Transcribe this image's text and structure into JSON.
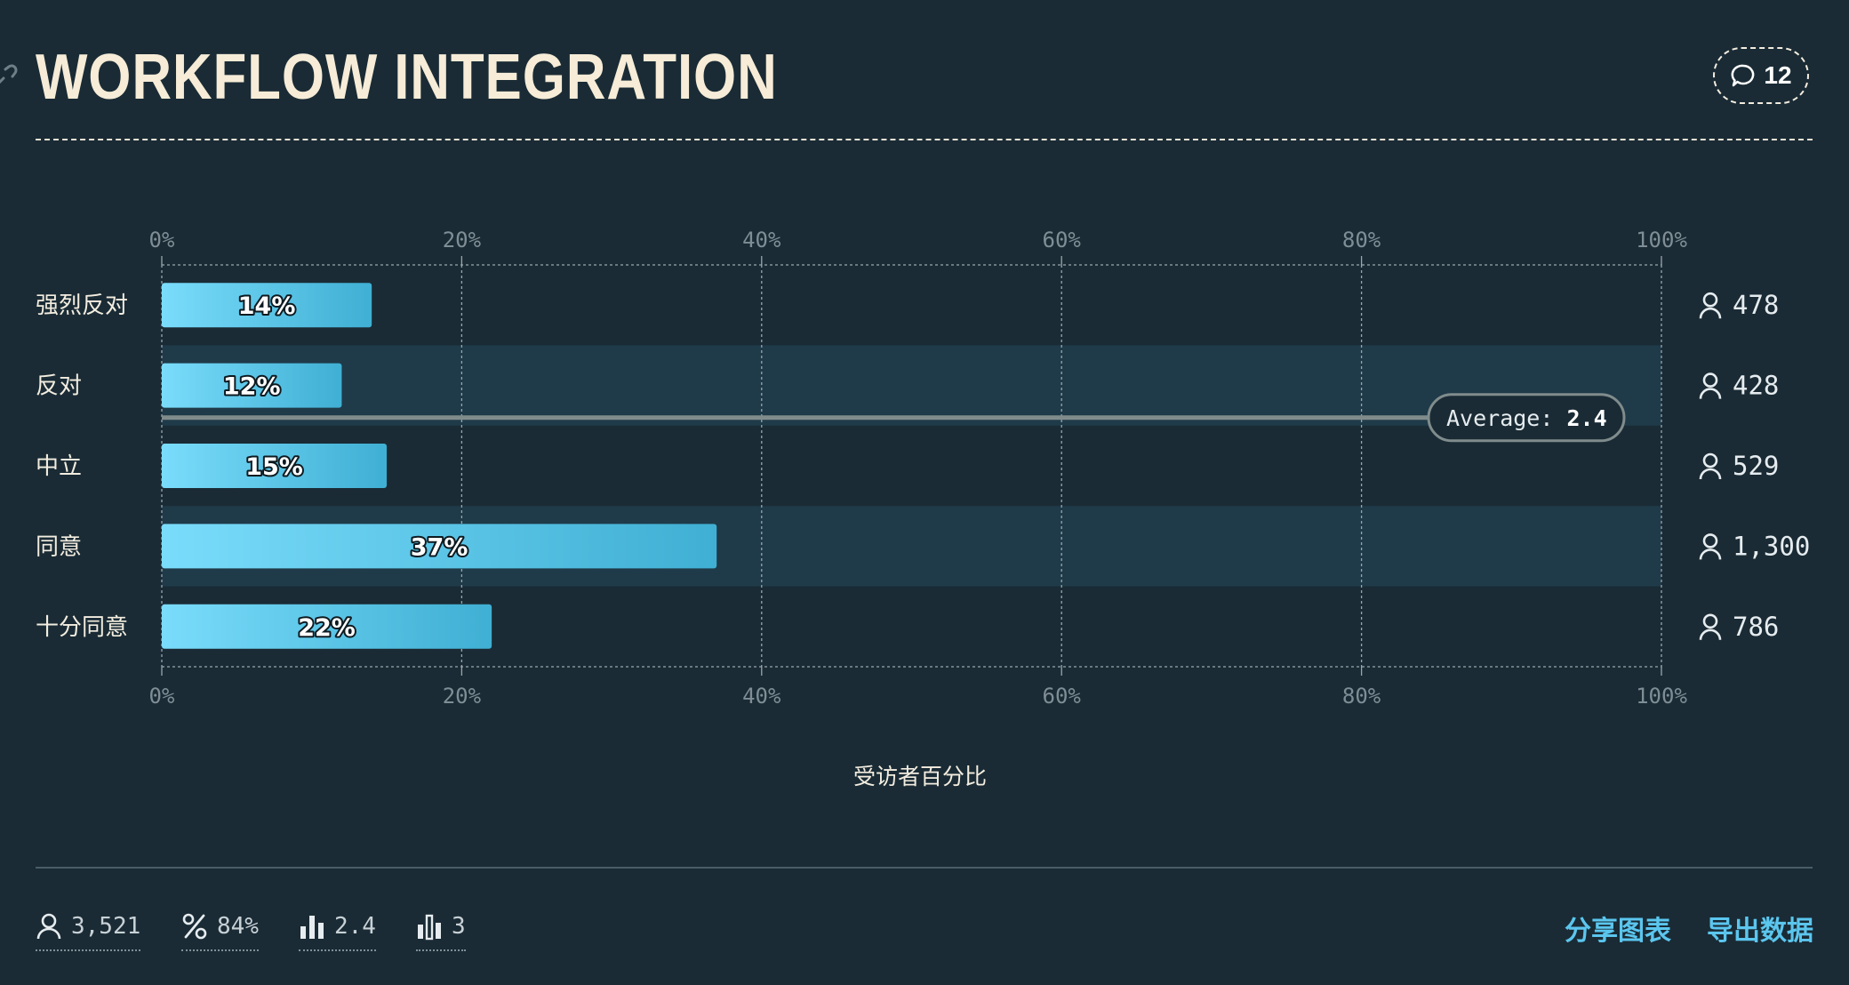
{
  "header": {
    "title": "WORKFLOW INTEGRATION",
    "comment_count": "12"
  },
  "chart_data": {
    "type": "bar",
    "orientation": "horizontal",
    "categories": [
      "强烈反对",
      "反对",
      "中立",
      "同意",
      "十分同意"
    ],
    "values": [
      14,
      12,
      15,
      37,
      22
    ],
    "value_labels": [
      "14%",
      "12%",
      "15%",
      "37%",
      "22%"
    ],
    "respondent_counts": [
      "478",
      "428",
      "529",
      "1,300",
      "786"
    ],
    "xlabel": "受访者百分比",
    "xlim": [
      0,
      100
    ],
    "x_ticks": [
      "0%",
      "20%",
      "40%",
      "60%",
      "80%",
      "100%"
    ],
    "grid": true,
    "average": {
      "label": "Average:",
      "value": "2.4"
    },
    "colors": {
      "bar_start": "#7adcfb",
      "bar_end": "#3fafd3",
      "row_band": "#1f3a49",
      "average_line": "#808c8c"
    }
  },
  "footer": {
    "stats": {
      "respondents": "3,521",
      "percent": "84%",
      "average": "2.4",
      "median": "3"
    },
    "links": {
      "share": "分享图表",
      "export": "导出数据"
    }
  }
}
